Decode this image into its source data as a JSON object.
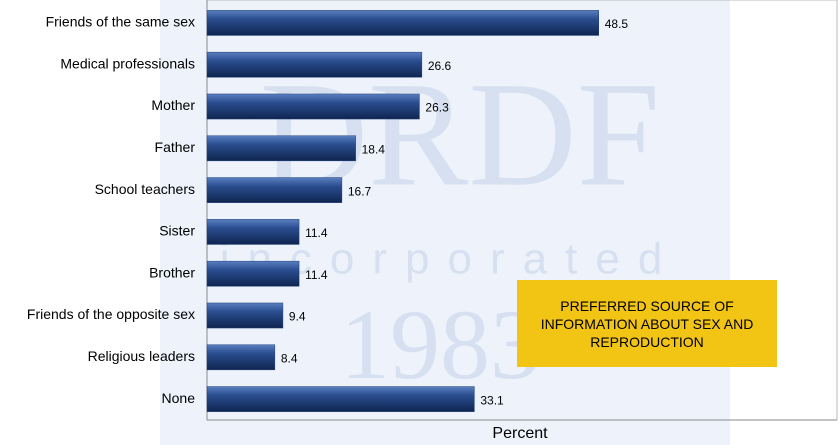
{
  "chart_data": {
    "type": "bar",
    "orientation": "horizontal",
    "categories": [
      "Friends of the same sex",
      "Medical professionals",
      "Mother",
      "Father",
      "School teachers",
      "Sister",
      "Brother",
      "Friends of the opposite sex",
      "Religious leaders",
      "None"
    ],
    "values": [
      48.5,
      26.6,
      26.3,
      18.4,
      16.7,
      11.4,
      11.4,
      9.4,
      8.4,
      33.1
    ],
    "color": "#1f3f7a",
    "xlim": [
      0,
      78
    ],
    "xlabel": "Percent",
    "annotation": "PREFERRED SOURCE OF INFORMATION  ABOUT SEX AND REPRODUCTION",
    "watermark": [
      "DRDF",
      "incorporated",
      "1983"
    ]
  }
}
